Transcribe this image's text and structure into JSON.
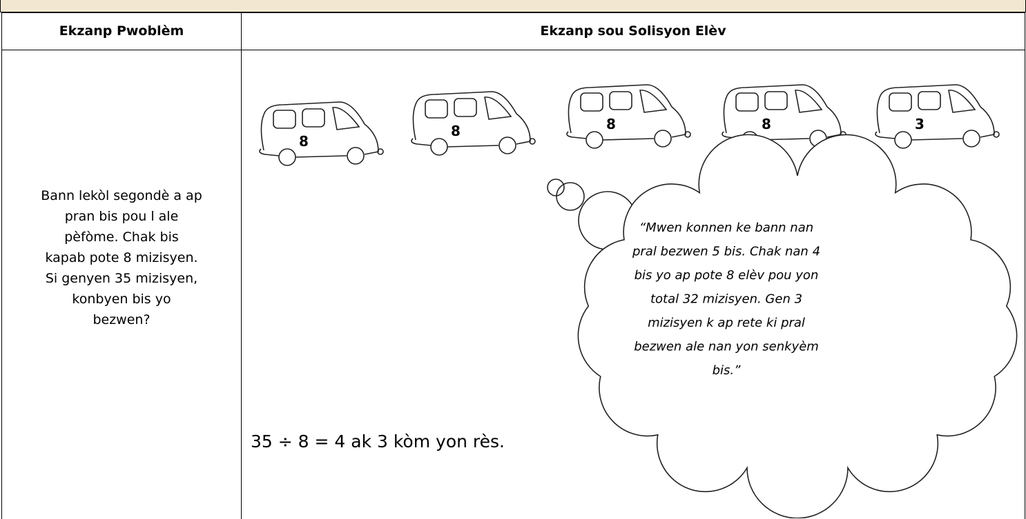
{
  "table": {
    "headers": [
      "Ekzanp Pwoblèm",
      "Ekzanp sou Solisyon Elèv"
    ],
    "problem_lines": [
      "Bann lekòl segondè a ap",
      "pran bis pou l ale",
      "pèfòme.  Chak bis",
      "kapab pote 8 mizisyen.",
      "Si genyen 35 mizisyen,",
      "konbyen bis yo",
      "bezwen?"
    ],
    "bus_labels": [
      "8",
      "8",
      "8",
      "8",
      "3"
    ],
    "equation": "35 ÷ 8 = 4 ak 3 kòm yon rès.",
    "thought_lines": [
      "“Mwen konnen ke bann nan",
      "pral bezwen 5 bis. Chak nan  4",
      "bis yo ap pote 8 elèv pou yon",
      "total 32 mizisyen.  Gen 3",
      "mizisyen k ap rete ki pral",
      "bezwen ale nan yon senkyèm",
      "bis.”"
    ]
  }
}
